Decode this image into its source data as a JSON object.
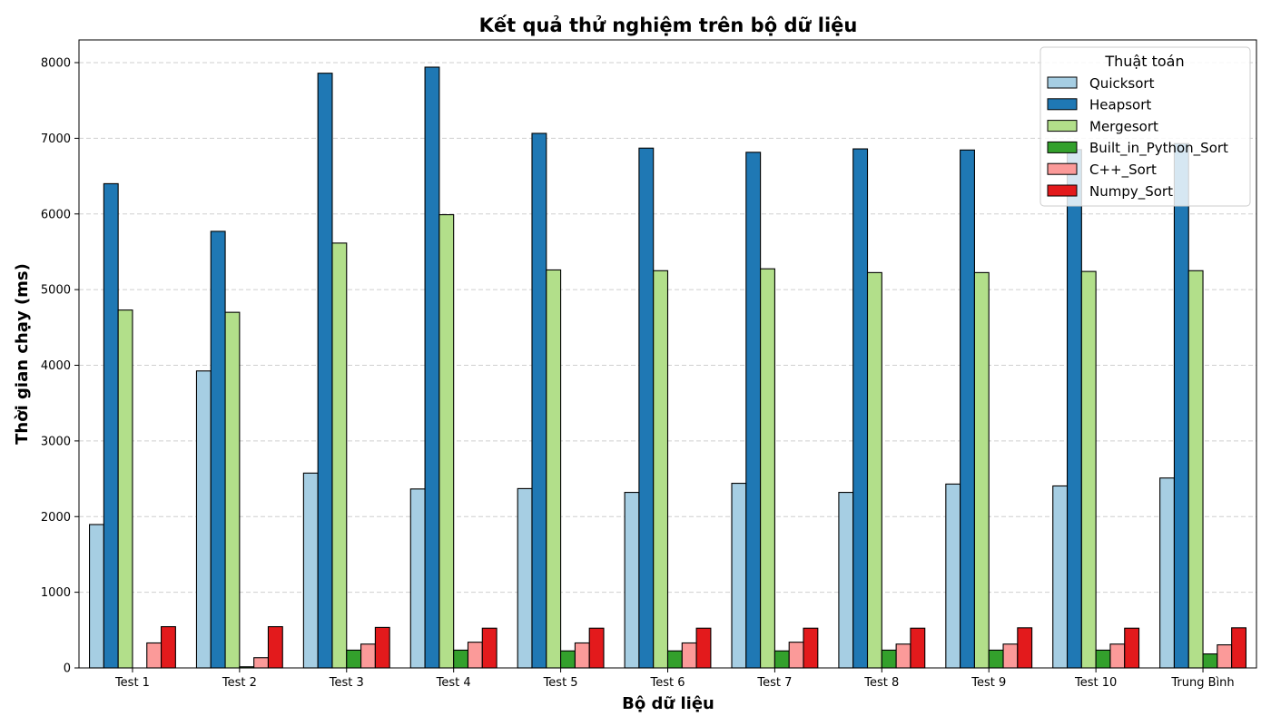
{
  "chart_data": {
    "type": "bar",
    "title": "Kết quả thử nghiệm trên bộ dữ liệu",
    "xlabel": "Bộ dữ liệu",
    "ylabel": "Thời gian chạy (ms)",
    "ylim": [
      0,
      8300
    ],
    "yticks": [
      0,
      1000,
      2000,
      3000,
      4000,
      5000,
      6000,
      7000,
      8000
    ],
    "grid": "y-dashed",
    "legend": {
      "title": "Thuật toán",
      "placement": "top-right"
    },
    "categories": [
      "Test 1",
      "Test 2",
      "Test 3",
      "Test 4",
      "Test 5",
      "Test 6",
      "Test 7",
      "Test 8",
      "Test 9",
      "Test 10",
      "Trung Bình"
    ],
    "series": [
      {
        "name": "Quicksort",
        "color": "#a6cee3",
        "values": [
          1895,
          3925,
          2575,
          2365,
          2370,
          2320,
          2440,
          2320,
          2430,
          2405,
          2510
        ]
      },
      {
        "name": "Heapsort",
        "color": "#1f78b4",
        "values": [
          6400,
          5770,
          7860,
          7940,
          7065,
          6870,
          6815,
          6860,
          6845,
          6850,
          6930
        ]
      },
      {
        "name": "Mergesort",
        "color": "#b2df8a",
        "values": [
          4730,
          4700,
          5615,
          5990,
          5260,
          5250,
          5275,
          5225,
          5225,
          5240,
          5250
        ]
      },
      {
        "name": "Built_in_Python_Sort",
        "color": "#33a02c",
        "values": [
          0,
          15,
          235,
          235,
          225,
          225,
          225,
          235,
          235,
          235,
          185
        ]
      },
      {
        "name": "C++_Sort",
        "color": "#fb9a99",
        "values": [
          330,
          135,
          315,
          340,
          330,
          330,
          340,
          315,
          315,
          315,
          305
        ]
      },
      {
        "name": "Numpy_Sort",
        "color": "#e31a1c",
        "values": [
          545,
          545,
          535,
          525,
          525,
          525,
          525,
          525,
          530,
          525,
          530
        ]
      }
    ]
  }
}
